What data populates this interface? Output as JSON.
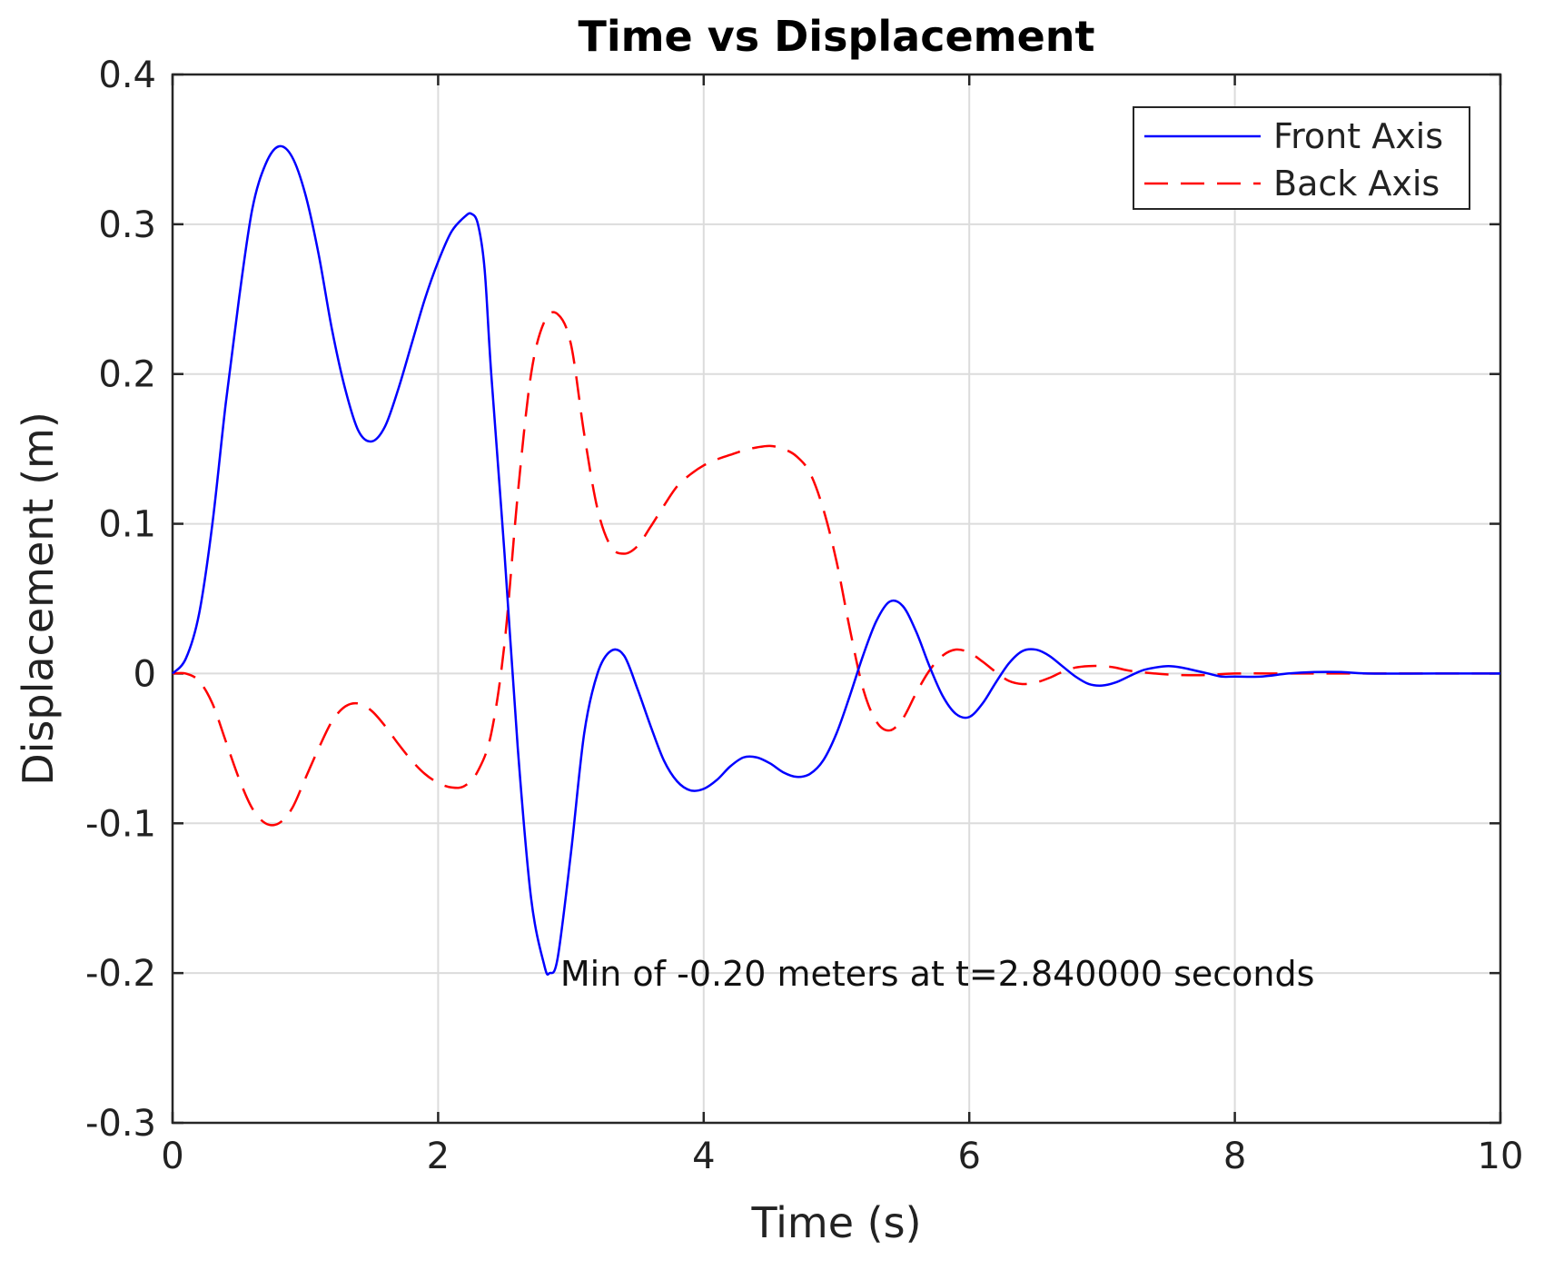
{
  "chart_data": {
    "type": "line",
    "title": "Time vs Displacement",
    "xlabel": "Time (s)",
    "ylabel": "Displacement (m)",
    "xlim": [
      0,
      10
    ],
    "ylim": [
      -0.3,
      0.4
    ],
    "xticks": [
      0,
      2,
      4,
      6,
      8,
      10
    ],
    "xtick_labels": [
      "0",
      "2",
      "4",
      "6",
      "8",
      "10"
    ],
    "yticks": [
      -0.3,
      -0.2,
      -0.1,
      0,
      0.1,
      0.2,
      0.3,
      0.4
    ],
    "ytick_labels": [
      "-0.3",
      "-0.2",
      "-0.1",
      "0",
      "0.1",
      "0.2",
      "0.3",
      "0.4"
    ],
    "grid": true,
    "legend_position": "top-right",
    "series": [
      {
        "name": "Front Axis",
        "color": "#0000ff",
        "style": "solid",
        "x": [
          0,
          0.1,
          0.2,
          0.3,
          0.4,
          0.5,
          0.6,
          0.7,
          0.8,
          0.9,
          1.0,
          1.1,
          1.2,
          1.3,
          1.4,
          1.5,
          1.6,
          1.7,
          1.8,
          1.9,
          2.0,
          2.1,
          2.2,
          2.25,
          2.3,
          2.35,
          2.4,
          2.5,
          2.6,
          2.7,
          2.8,
          2.84,
          2.9,
          3.0,
          3.1,
          3.2,
          3.3,
          3.4,
          3.5,
          3.6,
          3.7,
          3.8,
          3.9,
          4.0,
          4.1,
          4.2,
          4.3,
          4.4,
          4.5,
          4.6,
          4.7,
          4.8,
          4.9,
          5.0,
          5.1,
          5.2,
          5.3,
          5.4,
          5.5,
          5.6,
          5.7,
          5.8,
          5.9,
          6.0,
          6.1,
          6.2,
          6.3,
          6.4,
          6.5,
          6.6,
          6.7,
          6.8,
          6.9,
          7.0,
          7.1,
          7.2,
          7.3,
          7.4,
          7.5,
          7.6,
          7.7,
          7.8,
          7.9,
          8.0,
          8.2,
          8.4,
          8.6,
          8.8,
          9.0,
          9.5,
          10.0
        ],
        "y": [
          0,
          0.01,
          0.04,
          0.1,
          0.18,
          0.25,
          0.31,
          0.34,
          0.352,
          0.345,
          0.32,
          0.28,
          0.23,
          0.19,
          0.162,
          0.155,
          0.165,
          0.19,
          0.22,
          0.25,
          0.275,
          0.295,
          0.305,
          0.307,
          0.3,
          0.27,
          0.2,
          0.08,
          -0.05,
          -0.15,
          -0.195,
          -0.2,
          -0.19,
          -0.12,
          -0.04,
          0.0,
          0.015,
          0.012,
          -0.01,
          -0.035,
          -0.058,
          -0.072,
          -0.078,
          -0.077,
          -0.071,
          -0.062,
          -0.056,
          -0.056,
          -0.06,
          -0.066,
          -0.069,
          -0.067,
          -0.058,
          -0.04,
          -0.015,
          0.012,
          0.035,
          0.048,
          0.045,
          0.028,
          0.005,
          -0.015,
          -0.027,
          -0.029,
          -0.02,
          -0.006,
          0.007,
          0.015,
          0.016,
          0.012,
          0.005,
          -0.002,
          -0.007,
          -0.008,
          -0.006,
          -0.002,
          0.002,
          0.004,
          0.005,
          0.004,
          0.002,
          0.0,
          -0.002,
          -0.002,
          -0.002,
          0.0,
          0.001,
          0.001,
          0.0,
          0.0,
          0.0
        ]
      },
      {
        "name": "Back Axis",
        "color": "#ff0000",
        "style": "dashed",
        "x": [
          0,
          0.1,
          0.2,
          0.3,
          0.4,
          0.5,
          0.6,
          0.7,
          0.8,
          0.9,
          1.0,
          1.1,
          1.2,
          1.3,
          1.4,
          1.5,
          1.6,
          1.7,
          1.8,
          1.9,
          2.0,
          2.1,
          2.2,
          2.3,
          2.4,
          2.5,
          2.6,
          2.7,
          2.8,
          2.9,
          3.0,
          3.1,
          3.2,
          3.3,
          3.4,
          3.5,
          3.6,
          3.7,
          3.8,
          3.9,
          4.0,
          4.1,
          4.2,
          4.3,
          4.4,
          4.5,
          4.6,
          4.7,
          4.8,
          4.9,
          5.0,
          5.1,
          5.2,
          5.3,
          5.4,
          5.5,
          5.6,
          5.7,
          5.8,
          5.9,
          6.0,
          6.1,
          6.2,
          6.3,
          6.4,
          6.5,
          6.6,
          6.7,
          6.8,
          6.9,
          7.0,
          7.1,
          7.2,
          7.4,
          7.6,
          7.8,
          8.0,
          8.5,
          9.0,
          9.5,
          10.0
        ],
        "y": [
          0,
          0.0,
          -0.005,
          -0.02,
          -0.045,
          -0.07,
          -0.09,
          -0.1,
          -0.1,
          -0.09,
          -0.07,
          -0.05,
          -0.032,
          -0.022,
          -0.02,
          -0.025,
          -0.035,
          -0.047,
          -0.058,
          -0.067,
          -0.073,
          -0.076,
          -0.075,
          -0.065,
          -0.04,
          0.02,
          0.12,
          0.2,
          0.235,
          0.24,
          0.22,
          0.16,
          0.11,
          0.085,
          0.08,
          0.085,
          0.098,
          0.112,
          0.125,
          0.133,
          0.139,
          0.143,
          0.146,
          0.149,
          0.151,
          0.152,
          0.15,
          0.145,
          0.134,
          0.11,
          0.075,
          0.03,
          -0.01,
          -0.032,
          -0.038,
          -0.03,
          -0.013,
          0.002,
          0.012,
          0.016,
          0.014,
          0.008,
          0.001,
          -0.005,
          -0.007,
          -0.006,
          -0.003,
          0.001,
          0.004,
          0.005,
          0.005,
          0.004,
          0.002,
          0.0,
          -0.001,
          -0.001,
          0.0,
          0.0,
          0.0,
          0.0,
          0.0
        ]
      }
    ],
    "annotations": [
      {
        "text": "Min of -0.20 meters at t=2.840000 seconds",
        "x": 2.92,
        "y": -0.2
      }
    ]
  }
}
